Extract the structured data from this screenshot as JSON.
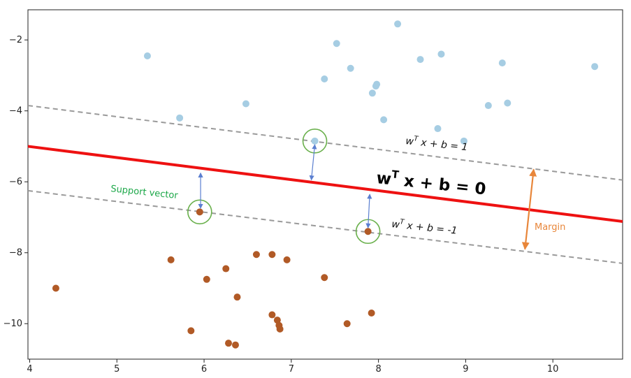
{
  "chart_data": {
    "type": "scatter",
    "xlim": [
      3.98,
      10.8
    ],
    "ylim": [
      -11.0,
      -1.15
    ],
    "xticks": [
      4,
      5,
      6,
      7,
      8,
      9,
      10
    ],
    "yticks": [
      -2,
      -4,
      -6,
      -8,
      -10
    ],
    "xtick_labels": [
      "4",
      "5",
      "6",
      "7",
      "8",
      "9",
      "10"
    ],
    "ytick_labels": [
      "−2",
      "−4",
      "−6",
      "−8",
      "−10"
    ],
    "grid": false,
    "series": [
      {
        "color": "#a6cde3",
        "points": [
          [
            5.35,
            -2.45
          ],
          [
            5.72,
            -4.2
          ],
          [
            6.48,
            -3.8
          ],
          [
            7.38,
            -3.1
          ],
          [
            7.52,
            -2.1
          ],
          [
            7.68,
            -2.8
          ],
          [
            7.93,
            -3.5
          ],
          [
            7.97,
            -3.3
          ],
          [
            7.98,
            -3.25
          ],
          [
            8.06,
            -4.25
          ],
          [
            8.22,
            -1.55
          ],
          [
            8.48,
            -2.55
          ],
          [
            8.68,
            -4.5
          ],
          [
            8.72,
            -2.4
          ],
          [
            8.98,
            -4.85
          ],
          [
            9.26,
            -3.85
          ],
          [
            9.42,
            -2.65
          ],
          [
            9.48,
            -3.78
          ],
          [
            10.48,
            -2.75
          ],
          [
            7.27,
            -4.85
          ]
        ]
      },
      {
        "color": "#b15a26",
        "points": [
          [
            4.3,
            -9.0
          ],
          [
            5.62,
            -8.2
          ],
          [
            5.85,
            -10.2
          ],
          [
            5.95,
            -6.85
          ],
          [
            6.03,
            -8.75
          ],
          [
            6.25,
            -8.45
          ],
          [
            6.28,
            -10.55
          ],
          [
            6.36,
            -10.6
          ],
          [
            6.38,
            -9.25
          ],
          [
            6.6,
            -8.05
          ],
          [
            6.78,
            -8.05
          ],
          [
            6.78,
            -9.75
          ],
          [
            6.84,
            -9.9
          ],
          [
            6.86,
            -10.05
          ],
          [
            6.87,
            -10.15
          ],
          [
            6.95,
            -8.2
          ],
          [
            7.38,
            -8.7
          ],
          [
            7.64,
            -10.0
          ],
          [
            7.88,
            -7.4
          ],
          [
            7.92,
            -9.7
          ]
        ]
      }
    ],
    "lines": [
      {
        "role": "decision",
        "x": [
          3.98,
          10.8
        ],
        "y": [
          -5.0,
          -7.12
        ],
        "color": "#ee1111",
        "dash": false
      },
      {
        "role": "margin+",
        "x": [
          3.98,
          10.8
        ],
        "y": [
          -3.85,
          -5.95
        ],
        "color": "#9a9a9a",
        "dash": true
      },
      {
        "role": "margin-",
        "x": [
          3.98,
          10.8
        ],
        "y": [
          -6.25,
          -8.3
        ],
        "color": "#9a9a9a",
        "dash": true
      }
    ],
    "support_vectors": [
      [
        7.27,
        -4.85
      ],
      [
        5.95,
        -6.85
      ],
      [
        7.88,
        -7.4
      ]
    ],
    "support_color": "#6ab04c",
    "arrows": [
      {
        "from": [
          7.27,
          -4.95
        ],
        "to": [
          7.23,
          -5.95
        ],
        "color": "#5b7fd0"
      },
      {
        "from": [
          5.96,
          -5.75
        ],
        "to": [
          5.96,
          -6.75
        ],
        "color": "#5b7fd0"
      },
      {
        "from": [
          7.9,
          -6.35
        ],
        "to": [
          7.88,
          -7.3
        ],
        "color": "#5b7fd0"
      }
    ],
    "margin_arrow": {
      "from": [
        9.78,
        -5.65
      ],
      "to": [
        9.68,
        -7.9
      ],
      "color": "#e8863a"
    },
    "annotations": {
      "eq_plus": "wT x + b = 1",
      "eq_zero": "wT x + b = 0",
      "eq_minus": "wT x + b = -1",
      "support_label": "Support vector",
      "margin_label": "Margin"
    }
  },
  "labels": {
    "eq_plus_w": "w",
    "eq_plus_sup": "T",
    "eq_plus_rest": " x + b = 1",
    "eq_zero_w": "w",
    "eq_zero_sup": "T",
    "eq_zero_rest": " x + b = 0",
    "eq_minus_w": "w",
    "eq_minus_sup": "T",
    "eq_minus_rest": " x + b = -1",
    "support_label": "Support vector",
    "margin_label": "Margin"
  }
}
